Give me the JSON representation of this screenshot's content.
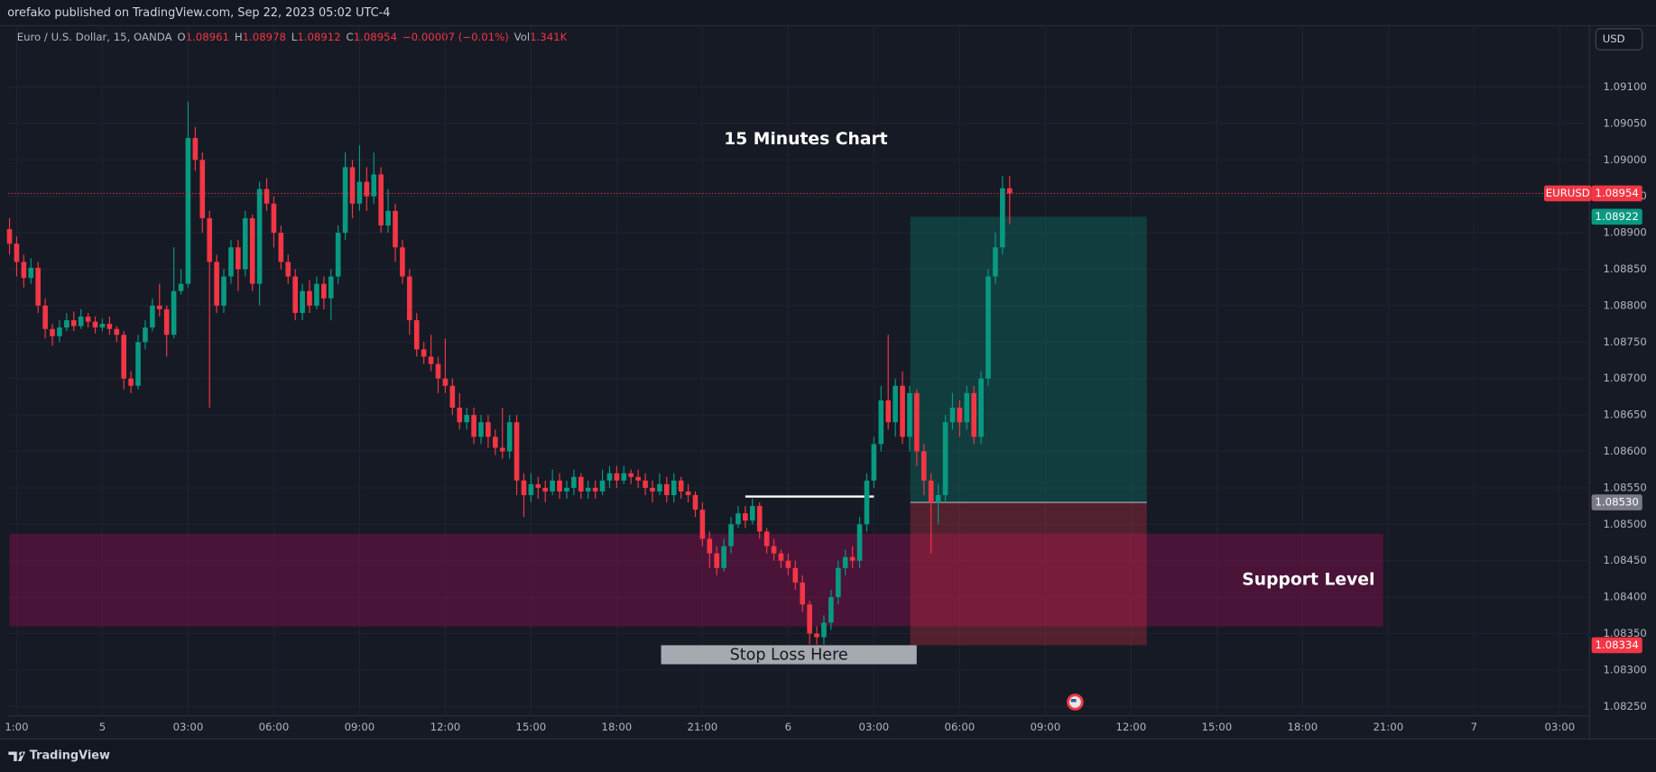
{
  "header": "orefako published on TradingView.com, Sep 22, 2023 05:02 UTC-4",
  "legend": {
    "symbol": "Euro / U.S. Dollar, 15, OANDA",
    "o_label": "O",
    "o": "1.08961",
    "h_label": "H",
    "h": "1.08978",
    "l_label": "L",
    "l": "1.08912",
    "c_label": "C",
    "c": "1.08954",
    "change": "−0.00007 (−0.01%)",
    "vol_label": "Vol",
    "vol": "1.341K"
  },
  "currency_button": "USD",
  "footer": "TradingView",
  "chart_data": {
    "type": "candlestick",
    "title": "15 Minutes Chart",
    "grid": true,
    "up_color": "#089981",
    "down_color": "#f23645",
    "xlim": [
      0,
      229
    ],
    "xticks": [
      {
        "value": 1,
        "label": "1:00"
      },
      {
        "value": 13,
        "label": "5"
      },
      {
        "value": 25,
        "label": "03:00"
      },
      {
        "value": 37,
        "label": "06:00"
      },
      {
        "value": 49,
        "label": "09:00"
      },
      {
        "value": 61,
        "label": "12:00"
      },
      {
        "value": 73,
        "label": "15:00"
      },
      {
        "value": 85,
        "label": "18:00"
      },
      {
        "value": 97,
        "label": "21:00"
      },
      {
        "value": 109,
        "label": "6"
      },
      {
        "value": 121,
        "label": "03:00"
      },
      {
        "value": 133,
        "label": "06:00"
      },
      {
        "value": 145,
        "label": "09:00"
      },
      {
        "value": 157,
        "label": "12:00"
      },
      {
        "value": 169,
        "label": "15:00"
      },
      {
        "value": 181,
        "label": "18:00"
      },
      {
        "value": 193,
        "label": "21:00"
      },
      {
        "value": 205,
        "label": "7"
      },
      {
        "value": 217,
        "label": "03:00"
      }
    ],
    "ylim": [
      1.08227,
      1.09151
    ],
    "yticks": [
      {
        "value": 1.0825,
        "label": "1.08250"
      },
      {
        "value": 1.083,
        "label": "1.08300"
      },
      {
        "value": 1.0835,
        "label": "1.08350"
      },
      {
        "value": 1.084,
        "label": "1.08400"
      },
      {
        "value": 1.0845,
        "label": "1.08450"
      },
      {
        "value": 1.085,
        "label": "1.08500"
      },
      {
        "value": 1.0855,
        "label": "1.08550"
      },
      {
        "value": 1.086,
        "label": "1.08600"
      },
      {
        "value": 1.0865,
        "label": "1.08650"
      },
      {
        "value": 1.087,
        "label": "1.08700"
      },
      {
        "value": 1.0875,
        "label": "1.08750"
      },
      {
        "value": 1.088,
        "label": "1.08800"
      },
      {
        "value": 1.0885,
        "label": "1.08850"
      },
      {
        "value": 1.089,
        "label": "1.08900"
      },
      {
        "value": 1.0895,
        "label": "1.08950"
      },
      {
        "value": 1.09,
        "label": "1.09000"
      },
      {
        "value": 1.0905,
        "label": "1.09050"
      },
      {
        "value": 1.091,
        "label": "1.09100"
      }
    ],
    "open": [
      1.08905,
      1.08885,
      1.0886,
      1.08838,
      1.08852,
      1.088,
      1.08768,
      1.08758,
      1.0877,
      1.0878,
      1.08772,
      1.08785,
      1.08778,
      1.0877,
      1.08775,
      1.08768,
      1.0876,
      1.087,
      1.0869,
      1.0875,
      1.0877,
      1.088,
      1.08795,
      1.0876,
      1.0882,
      1.0883,
      1.0903,
      1.09,
      1.0892,
      1.0886,
      1.088,
      1.0884,
      1.0888,
      1.0885,
      1.0892,
      1.0883,
      1.0896,
      1.0894,
      1.089,
      1.0886,
      1.0884,
      1.0879,
      1.0882,
      1.088,
      1.0883,
      1.0881,
      1.0884,
      1.089,
      1.0899,
      1.0894,
      1.0897,
      1.0895,
      1.0898,
      1.0891,
      1.0893,
      1.0888,
      1.0884,
      1.0878,
      1.0874,
      1.0873,
      1.0872,
      1.087,
      1.0869,
      1.0866,
      1.0864,
      1.0865,
      1.0862,
      1.0864,
      1.0862,
      1.08605,
      1.086,
      1.0864,
      1.0856,
      1.0854,
      1.08555,
      1.0855,
      1.08545,
      1.0856,
      1.08545,
      1.0855,
      1.08565,
      1.08545,
      1.0855,
      1.08545,
      1.0856,
      1.0857,
      1.0856,
      1.0857,
      1.08565,
      1.0856,
      1.0855,
      1.08545,
      1.08555,
      1.0854,
      1.0856,
      1.08545,
      1.0854,
      1.0852,
      1.0848,
      1.0846,
      1.0844,
      1.0847,
      1.085,
      1.08515,
      1.08505,
      1.08525,
      1.0849,
      1.0847,
      1.0846,
      1.0845,
      1.0844,
      1.0842,
      1.0839,
      1.0835,
      1.08345,
      1.08365,
      1.084,
      1.0844,
      1.08455,
      1.0845,
      1.085,
      1.0856,
      1.0861,
      1.0867,
      1.0864,
      1.0869,
      1.0862,
      1.0868,
      1.086,
      1.0856,
      1.0853,
      1.0854,
      1.0864,
      1.0866,
      1.0864,
      1.0868,
      1.0862,
      1.087,
      1.0884,
      1.0888,
      1.08961
    ],
    "high": [
      1.0892,
      1.08895,
      1.0887,
      1.08865,
      1.0886,
      1.0881,
      1.08775,
      1.0878,
      1.0879,
      1.08792,
      1.08795,
      1.0879,
      1.08785,
      1.08782,
      1.08785,
      1.08772,
      1.08765,
      1.0871,
      1.0876,
      1.0878,
      1.0881,
      1.0883,
      1.088,
      1.0888,
      1.0885,
      1.0908,
      1.09045,
      1.0901,
      1.0893,
      1.0887,
      1.0885,
      1.0889,
      1.0889,
      1.0893,
      1.08925,
      1.0897,
      1.08975,
      1.0895,
      1.0891,
      1.0887,
      1.0885,
      1.0883,
      1.08835,
      1.0884,
      1.0884,
      1.0885,
      1.0891,
      1.0901,
      1.09,
      1.0902,
      1.0899,
      1.0901,
      1.0899,
      1.0896,
      1.0894,
      1.0889,
      1.0885,
      1.0879,
      1.0875,
      1.0876,
      1.0873,
      1.08755,
      1.087,
      1.0868,
      1.0866,
      1.0866,
      1.0865,
      1.0865,
      1.0863,
      1.0866,
      1.0865,
      1.0865,
      1.0857,
      1.0857,
      1.08565,
      1.0856,
      1.08575,
      1.0857,
      1.0856,
      1.08575,
      1.0857,
      1.0856,
      1.0856,
      1.08575,
      1.0858,
      1.0858,
      1.0858,
      1.08575,
      1.08575,
      1.0857,
      1.0856,
      1.0857,
      1.08565,
      1.0857,
      1.08565,
      1.08555,
      1.08545,
      1.0853,
      1.0849,
      1.0847,
      1.0848,
      1.0851,
      1.08525,
      1.08525,
      1.08535,
      1.0853,
      1.08495,
      1.0848,
      1.08465,
      1.0846,
      1.0845,
      1.0843,
      1.08395,
      1.0836,
      1.08375,
      1.0841,
      1.0845,
      1.08465,
      1.0847,
      1.0851,
      1.0857,
      1.0862,
      1.0869,
      1.0876,
      1.087,
      1.0871,
      1.0869,
      1.08685,
      1.0861,
      1.0857,
      1.08555,
      1.0865,
      1.0868,
      1.0867,
      1.0869,
      1.0869,
      1.0871,
      1.0885,
      1.089,
      1.08978,
      1.08978
    ],
    "low": [
      1.0887,
      1.0884,
      1.08825,
      1.0883,
      1.0879,
      1.08755,
      1.08745,
      1.0875,
      1.08765,
      1.08765,
      1.08768,
      1.0877,
      1.08762,
      1.08765,
      1.0876,
      1.0875,
      1.08685,
      1.0868,
      1.08685,
      1.0874,
      1.08765,
      1.08785,
      1.0873,
      1.08755,
      1.08815,
      1.08825,
      1.08985,
      1.089,
      1.0866,
      1.0879,
      1.0879,
      1.0883,
      1.0882,
      1.0884,
      1.0882,
      1.088,
      1.0893,
      1.0888,
      1.0885,
      1.0883,
      1.0878,
      1.0878,
      1.0879,
      1.08795,
      1.08795,
      1.0878,
      1.0883,
      1.0889,
      1.0892,
      1.0893,
      1.0893,
      1.0894,
      1.089,
      1.089,
      1.0886,
      1.0883,
      1.0876,
      1.0873,
      1.0872,
      1.0871,
      1.0868,
      1.0868,
      1.0865,
      1.0863,
      1.0863,
      1.0861,
      1.0861,
      1.08605,
      1.08595,
      1.0859,
      1.0859,
      1.0854,
      1.0851,
      1.0853,
      1.08535,
      1.0853,
      1.0854,
      1.08535,
      1.08535,
      1.0854,
      1.08535,
      1.08535,
      1.08535,
      1.0854,
      1.0855,
      1.0855,
      1.08555,
      1.08555,
      1.0855,
      1.0854,
      1.0853,
      1.0854,
      1.0853,
      1.0853,
      1.08535,
      1.0853,
      1.0851,
      1.0847,
      1.0844,
      1.0843,
      1.08435,
      1.0846,
      1.08495,
      1.08495,
      1.085,
      1.0848,
      1.0846,
      1.0845,
      1.0844,
      1.0843,
      1.0841,
      1.0838,
      1.08335,
      1.08335,
      1.08335,
      1.08355,
      1.0839,
      1.0843,
      1.0844,
      1.0844,
      1.0849,
      1.0855,
      1.086,
      1.0863,
      1.0862,
      1.0861,
      1.086,
      1.0858,
      1.0854,
      1.0846,
      1.085,
      1.0853,
      1.0863,
      1.0862,
      1.0863,
      1.0861,
      1.0861,
      1.0869,
      1.0883,
      1.0887,
      1.08912
    ],
    "close": [
      1.08885,
      1.0886,
      1.08838,
      1.08852,
      1.088,
      1.08768,
      1.08758,
      1.0877,
      1.0878,
      1.08772,
      1.08785,
      1.08778,
      1.0877,
      1.08775,
      1.08768,
      1.0876,
      1.087,
      1.0869,
      1.0875,
      1.0877,
      1.088,
      1.08795,
      1.0876,
      1.0882,
      1.0883,
      1.0903,
      1.09,
      1.0892,
      1.0886,
      1.088,
      1.0884,
      1.0888,
      1.0885,
      1.0892,
      1.0883,
      1.0896,
      1.0894,
      1.089,
      1.0886,
      1.0884,
      1.0879,
      1.0882,
      1.088,
      1.0883,
      1.0881,
      1.0884,
      1.089,
      1.0899,
      1.0894,
      1.0897,
      1.0895,
      1.0898,
      1.0891,
      1.0893,
      1.0888,
      1.0884,
      1.0878,
      1.0874,
      1.0873,
      1.0872,
      1.087,
      1.0869,
      1.0866,
      1.0864,
      1.0865,
      1.0862,
      1.0864,
      1.0862,
      1.08605,
      1.086,
      1.0864,
      1.0856,
      1.0854,
      1.08555,
      1.0855,
      1.08545,
      1.0856,
      1.08545,
      1.0855,
      1.08565,
      1.08545,
      1.0855,
      1.08545,
      1.0856,
      1.0857,
      1.0856,
      1.0857,
      1.08565,
      1.0856,
      1.0855,
      1.08545,
      1.08555,
      1.0854,
      1.0856,
      1.08545,
      1.0854,
      1.0852,
      1.0848,
      1.0846,
      1.0844,
      1.0847,
      1.085,
      1.08515,
      1.08505,
      1.08525,
      1.0849,
      1.0847,
      1.0846,
      1.0845,
      1.0844,
      1.0842,
      1.0839,
      1.0835,
      1.08345,
      1.08365,
      1.084,
      1.0844,
      1.08455,
      1.0845,
      1.085,
      1.0856,
      1.0861,
      1.0867,
      1.0864,
      1.0869,
      1.0862,
      1.0868,
      1.086,
      1.0856,
      1.0853,
      1.0854,
      1.0864,
      1.0866,
      1.0864,
      1.0868,
      1.0862,
      1.087,
      1.0884,
      1.0888,
      1.08961,
      1.08954
    ],
    "support_zone": {
      "label": "Support Level",
      "y": [
        1.0836,
        1.08487
      ],
      "x": [
        0,
        192.3
      ]
    },
    "position": {
      "entry": 1.0853,
      "target": 1.08922,
      "stop": 1.08334,
      "x": [
        126.1,
        159.2
      ],
      "stop_label": "Stop Loss Here"
    },
    "level_line": {
      "price": 1.08538,
      "x": [
        103,
        121
      ]
    },
    "price_tags": [
      {
        "name": "EURUSD",
        "value": 1.08954,
        "label": "1.08954",
        "color": "#f23645"
      },
      {
        "value": 1.08922,
        "label": "1.08922",
        "color": "#089981"
      },
      {
        "value": 1.0853,
        "label": "1.08530",
        "color": "#787b86"
      },
      {
        "value": 1.08334,
        "label": "1.08334",
        "color": "#f23645"
      }
    ]
  }
}
